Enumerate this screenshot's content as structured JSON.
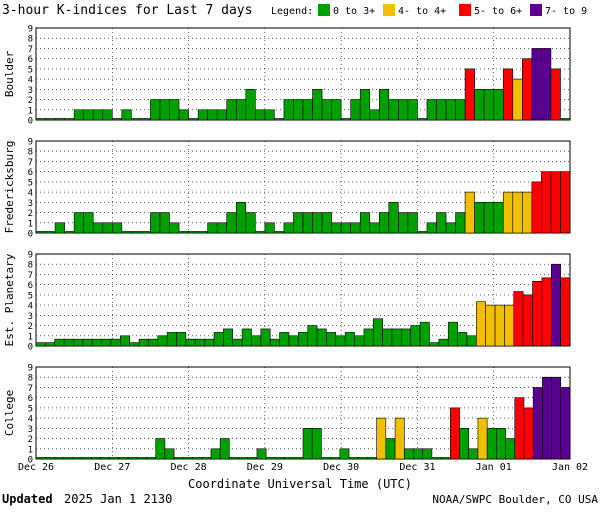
{
  "title": "3-hour K-indices for Last 7 days",
  "legend": {
    "label": "Legend:",
    "items": [
      {
        "label": "0 to 3+",
        "color": "#00a000"
      },
      {
        "label": "4- to 4+",
        "color": "#f0c000"
      },
      {
        "label": "5- to 6+",
        "color": "#ff0000"
      },
      {
        "label": "7- to 9",
        "color": "#5a0090"
      }
    ]
  },
  "xlabel": "Coordinate Universal Time (UTC)",
  "footer": {
    "updated_label": "Updated",
    "updated_value": "2025 Jan  1 2130",
    "source": "NOAA/SWPC Boulder, CO USA"
  },
  "chart_data": {
    "type": "bar",
    "x_ticks": [
      "Dec 26",
      "Dec 27",
      "Dec 28",
      "Dec 29",
      "Dec 30",
      "Dec 31",
      "Jan 01",
      "Jan 02"
    ],
    "y_ticks": [
      0,
      1,
      2,
      3,
      4,
      5,
      6,
      7,
      8,
      9
    ],
    "ylim": [
      0,
      9
    ],
    "grid": true,
    "panels": [
      {
        "name": "Boulder",
        "values": [
          0,
          0,
          0,
          0,
          1,
          1,
          1,
          1,
          0,
          1,
          0,
          0,
          2,
          2,
          2,
          1,
          0,
          1,
          1,
          1,
          2,
          2,
          3,
          1,
          1,
          0,
          2,
          2,
          2,
          3,
          2,
          2,
          0,
          2,
          3,
          1,
          3,
          2,
          2,
          2,
          0,
          2,
          2,
          2,
          2,
          5,
          3,
          3,
          3,
          5,
          4,
          6,
          7,
          7,
          5,
          0
        ]
      },
      {
        "name": "Fredericksburg",
        "values": [
          0,
          0,
          1,
          0,
          2,
          2,
          1,
          1,
          1,
          0,
          0,
          0,
          2,
          2,
          1,
          0,
          0,
          0,
          1,
          1,
          2,
          3,
          2,
          0,
          1,
          0,
          1,
          2,
          2,
          2,
          2,
          1,
          1,
          1,
          2,
          1,
          2,
          3,
          2,
          2,
          0,
          1,
          2,
          1,
          2,
          4,
          3,
          3,
          3,
          4,
          4,
          4,
          5,
          6,
          6,
          6
        ]
      },
      {
        "name": "Est. Planetary",
        "values": [
          0.33,
          0.33,
          0.67,
          0.67,
          0.67,
          0.67,
          0.67,
          0.67,
          0.67,
          1,
          0.33,
          0.67,
          0.67,
          1,
          1.33,
          1.33,
          0.67,
          0.67,
          0.67,
          1.33,
          1.67,
          0.67,
          1.67,
          1,
          1.67,
          0.67,
          1.33,
          1,
          1.33,
          2,
          1.67,
          1.33,
          1,
          1.33,
          1,
          1.67,
          2.67,
          1.67,
          1.67,
          1.67,
          2,
          2.33,
          0.33,
          0.67,
          2.33,
          1.33,
          1,
          4.33,
          4,
          4,
          4,
          5.33,
          5,
          6.33,
          6.67,
          8,
          6.67
        ]
      },
      {
        "name": "College",
        "values": [
          0,
          0,
          0,
          0,
          0,
          0,
          0,
          0,
          0,
          0,
          0,
          0,
          0,
          2,
          1,
          0,
          0,
          0,
          0,
          1,
          2,
          0,
          0,
          0,
          1,
          0,
          0,
          0,
          0,
          3,
          3,
          0,
          0,
          1,
          0,
          0,
          0,
          4,
          2,
          4,
          1,
          1,
          1,
          0,
          0,
          5,
          3,
          1,
          4,
          3,
          3,
          2,
          6,
          5,
          7,
          8,
          8,
          7
        ]
      }
    ]
  }
}
